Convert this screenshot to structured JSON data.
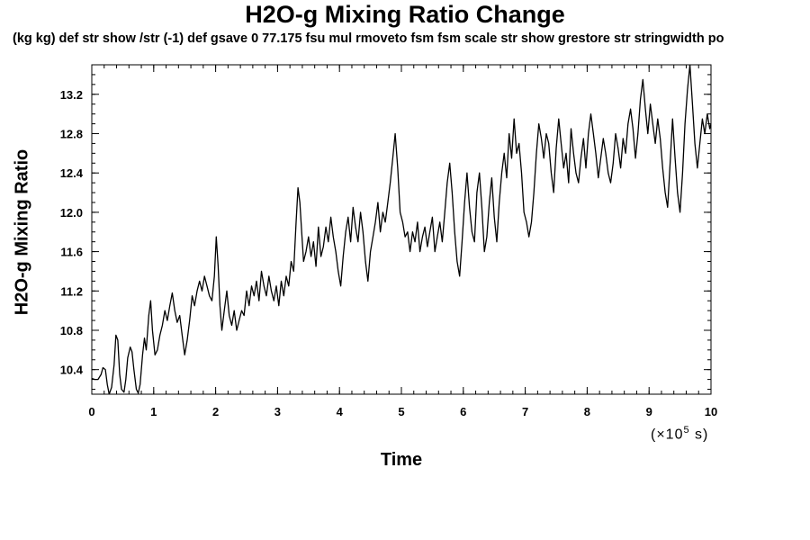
{
  "chart_data": {
    "type": "line",
    "title": "H2O-g Mixing Ratio Change",
    "subtitle": "(kg kg) def str show /str (-1) def gsave 0 77.175 fsu mul rmoveto fsm fsm scale str show grestore str stringwidth po",
    "xlabel": "Time",
    "ylabel": "H2O-g Mixing Ratio",
    "x_unit_prefix": "(×10",
    "x_unit_exp": "5",
    "x_unit_suffix": " s)",
    "xlim": [
      0,
      10
    ],
    "ylim": [
      10.15,
      13.5
    ],
    "xticks": [
      "0",
      "1",
      "2",
      "3",
      "4",
      "5",
      "6",
      "7",
      "8",
      "9",
      "10"
    ],
    "yticks": [
      "10.4",
      "10.8",
      "11.2",
      "11.6",
      "12.0",
      "12.4",
      "12.8",
      "13.2"
    ],
    "grid": false,
    "series": [
      {
        "values": [
          [
            0.0,
            10.31
          ],
          [
            0.05,
            10.3
          ],
          [
            0.1,
            10.3
          ],
          [
            0.15,
            10.35
          ],
          [
            0.18,
            10.42
          ],
          [
            0.22,
            10.4
          ],
          [
            0.25,
            10.25
          ],
          [
            0.28,
            10.15
          ],
          [
            0.32,
            10.22
          ],
          [
            0.36,
            10.45
          ],
          [
            0.39,
            10.75
          ],
          [
            0.42,
            10.7
          ],
          [
            0.45,
            10.35
          ],
          [
            0.48,
            10.2
          ],
          [
            0.52,
            10.17
          ],
          [
            0.55,
            10.3
          ],
          [
            0.58,
            10.52
          ],
          [
            0.62,
            10.63
          ],
          [
            0.65,
            10.58
          ],
          [
            0.68,
            10.4
          ],
          [
            0.72,
            10.2
          ],
          [
            0.75,
            10.16
          ],
          [
            0.78,
            10.25
          ],
          [
            0.82,
            10.55
          ],
          [
            0.85,
            10.72
          ],
          [
            0.88,
            10.6
          ],
          [
            0.92,
            10.95
          ],
          [
            0.95,
            11.1
          ],
          [
            0.98,
            10.8
          ],
          [
            1.02,
            10.55
          ],
          [
            1.06,
            10.6
          ],
          [
            1.1,
            10.75
          ],
          [
            1.14,
            10.85
          ],
          [
            1.18,
            11.0
          ],
          [
            1.22,
            10.9
          ],
          [
            1.26,
            11.05
          ],
          [
            1.3,
            11.18
          ],
          [
            1.34,
            11.0
          ],
          [
            1.38,
            10.88
          ],
          [
            1.42,
            10.95
          ],
          [
            1.46,
            10.75
          ],
          [
            1.5,
            10.55
          ],
          [
            1.54,
            10.7
          ],
          [
            1.58,
            10.9
          ],
          [
            1.62,
            11.15
          ],
          [
            1.66,
            11.05
          ],
          [
            1.7,
            11.2
          ],
          [
            1.74,
            11.3
          ],
          [
            1.78,
            11.2
          ],
          [
            1.82,
            11.35
          ],
          [
            1.86,
            11.25
          ],
          [
            1.9,
            11.15
          ],
          [
            1.94,
            11.1
          ],
          [
            1.98,
            11.35
          ],
          [
            2.01,
            11.75
          ],
          [
            2.04,
            11.45
          ],
          [
            2.07,
            11.05
          ],
          [
            2.1,
            10.8
          ],
          [
            2.14,
            11.0
          ],
          [
            2.18,
            11.2
          ],
          [
            2.22,
            10.95
          ],
          [
            2.26,
            10.85
          ],
          [
            2.3,
            11.0
          ],
          [
            2.34,
            10.8
          ],
          [
            2.38,
            10.9
          ],
          [
            2.42,
            11.0
          ],
          [
            2.46,
            10.95
          ],
          [
            2.5,
            11.2
          ],
          [
            2.54,
            11.05
          ],
          [
            2.58,
            11.25
          ],
          [
            2.62,
            11.15
          ],
          [
            2.66,
            11.3
          ],
          [
            2.7,
            11.1
          ],
          [
            2.74,
            11.4
          ],
          [
            2.78,
            11.25
          ],
          [
            2.82,
            11.15
          ],
          [
            2.86,
            11.35
          ],
          [
            2.9,
            11.2
          ],
          [
            2.94,
            11.1
          ],
          [
            2.98,
            11.25
          ],
          [
            3.02,
            11.05
          ],
          [
            3.06,
            11.3
          ],
          [
            3.1,
            11.15
          ],
          [
            3.14,
            11.35
          ],
          [
            3.18,
            11.25
          ],
          [
            3.22,
            11.5
          ],
          [
            3.26,
            11.4
          ],
          [
            3.3,
            11.9
          ],
          [
            3.33,
            12.25
          ],
          [
            3.36,
            12.1
          ],
          [
            3.39,
            11.8
          ],
          [
            3.42,
            11.5
          ],
          [
            3.46,
            11.6
          ],
          [
            3.5,
            11.75
          ],
          [
            3.54,
            11.55
          ],
          [
            3.58,
            11.7
          ],
          [
            3.62,
            11.45
          ],
          [
            3.66,
            11.85
          ],
          [
            3.7,
            11.55
          ],
          [
            3.74,
            11.65
          ],
          [
            3.78,
            11.85
          ],
          [
            3.82,
            11.7
          ],
          [
            3.86,
            11.95
          ],
          [
            3.9,
            11.75
          ],
          [
            3.94,
            11.6
          ],
          [
            3.98,
            11.4
          ],
          [
            4.02,
            11.25
          ],
          [
            4.06,
            11.55
          ],
          [
            4.1,
            11.8
          ],
          [
            4.14,
            11.95
          ],
          [
            4.18,
            11.7
          ],
          [
            4.22,
            12.05
          ],
          [
            4.26,
            11.85
          ],
          [
            4.3,
            11.7
          ],
          [
            4.34,
            12.0
          ],
          [
            4.38,
            11.8
          ],
          [
            4.42,
            11.5
          ],
          [
            4.46,
            11.3
          ],
          [
            4.5,
            11.6
          ],
          [
            4.54,
            11.75
          ],
          [
            4.58,
            11.9
          ],
          [
            4.62,
            12.1
          ],
          [
            4.66,
            11.8
          ],
          [
            4.7,
            12.0
          ],
          [
            4.74,
            11.9
          ],
          [
            4.78,
            12.1
          ],
          [
            4.82,
            12.3
          ],
          [
            4.86,
            12.55
          ],
          [
            4.9,
            12.8
          ],
          [
            4.94,
            12.45
          ],
          [
            4.98,
            12.0
          ],
          [
            5.02,
            11.9
          ],
          [
            5.06,
            11.75
          ],
          [
            5.1,
            11.8
          ],
          [
            5.14,
            11.6
          ],
          [
            5.18,
            11.8
          ],
          [
            5.22,
            11.7
          ],
          [
            5.26,
            11.9
          ],
          [
            5.3,
            11.6
          ],
          [
            5.34,
            11.75
          ],
          [
            5.38,
            11.85
          ],
          [
            5.42,
            11.65
          ],
          [
            5.46,
            11.8
          ],
          [
            5.5,
            11.95
          ],
          [
            5.54,
            11.6
          ],
          [
            5.58,
            11.75
          ],
          [
            5.62,
            11.9
          ],
          [
            5.66,
            11.7
          ],
          [
            5.7,
            12.0
          ],
          [
            5.74,
            12.3
          ],
          [
            5.78,
            12.5
          ],
          [
            5.82,
            12.2
          ],
          [
            5.86,
            11.8
          ],
          [
            5.9,
            11.5
          ],
          [
            5.94,
            11.35
          ],
          [
            5.98,
            11.7
          ],
          [
            6.02,
            12.1
          ],
          [
            6.06,
            12.4
          ],
          [
            6.1,
            12.05
          ],
          [
            6.14,
            11.8
          ],
          [
            6.18,
            11.7
          ],
          [
            6.22,
            12.2
          ],
          [
            6.26,
            12.4
          ],
          [
            6.3,
            12.05
          ],
          [
            6.34,
            11.6
          ],
          [
            6.38,
            11.75
          ],
          [
            6.42,
            12.1
          ],
          [
            6.46,
            12.35
          ],
          [
            6.5,
            11.95
          ],
          [
            6.54,
            11.7
          ],
          [
            6.58,
            12.1
          ],
          [
            6.62,
            12.4
          ],
          [
            6.66,
            12.6
          ],
          [
            6.7,
            12.35
          ],
          [
            6.74,
            12.8
          ],
          [
            6.78,
            12.55
          ],
          [
            6.82,
            12.95
          ],
          [
            6.86,
            12.6
          ],
          [
            6.9,
            12.7
          ],
          [
            6.94,
            12.4
          ],
          [
            6.98,
            12.0
          ],
          [
            7.02,
            11.9
          ],
          [
            7.06,
            11.75
          ],
          [
            7.1,
            11.9
          ],
          [
            7.14,
            12.2
          ],
          [
            7.18,
            12.6
          ],
          [
            7.22,
            12.9
          ],
          [
            7.26,
            12.75
          ],
          [
            7.3,
            12.55
          ],
          [
            7.34,
            12.8
          ],
          [
            7.38,
            12.7
          ],
          [
            7.42,
            12.4
          ],
          [
            7.46,
            12.2
          ],
          [
            7.5,
            12.65
          ],
          [
            7.54,
            12.95
          ],
          [
            7.58,
            12.7
          ],
          [
            7.62,
            12.45
          ],
          [
            7.66,
            12.6
          ],
          [
            7.7,
            12.3
          ],
          [
            7.74,
            12.85
          ],
          [
            7.78,
            12.6
          ],
          [
            7.82,
            12.4
          ],
          [
            7.86,
            12.3
          ],
          [
            7.9,
            12.55
          ],
          [
            7.94,
            12.75
          ],
          [
            7.98,
            12.45
          ],
          [
            8.02,
            12.8
          ],
          [
            8.06,
            13.0
          ],
          [
            8.1,
            12.8
          ],
          [
            8.14,
            12.6
          ],
          [
            8.18,
            12.35
          ],
          [
            8.22,
            12.55
          ],
          [
            8.26,
            12.75
          ],
          [
            8.3,
            12.6
          ],
          [
            8.34,
            12.4
          ],
          [
            8.38,
            12.3
          ],
          [
            8.42,
            12.5
          ],
          [
            8.46,
            12.8
          ],
          [
            8.5,
            12.65
          ],
          [
            8.54,
            12.45
          ],
          [
            8.58,
            12.75
          ],
          [
            8.62,
            12.6
          ],
          [
            8.66,
            12.9
          ],
          [
            8.7,
            13.05
          ],
          [
            8.74,
            12.85
          ],
          [
            8.78,
            12.55
          ],
          [
            8.82,
            12.8
          ],
          [
            8.86,
            13.15
          ],
          [
            8.9,
            13.35
          ],
          [
            8.94,
            13.05
          ],
          [
            8.98,
            12.8
          ],
          [
            9.02,
            13.1
          ],
          [
            9.06,
            12.9
          ],
          [
            9.1,
            12.7
          ],
          [
            9.14,
            12.95
          ],
          [
            9.18,
            12.75
          ],
          [
            9.22,
            12.45
          ],
          [
            9.26,
            12.2
          ],
          [
            9.3,
            12.05
          ],
          [
            9.34,
            12.5
          ],
          [
            9.38,
            12.95
          ],
          [
            9.42,
            12.55
          ],
          [
            9.46,
            12.2
          ],
          [
            9.5,
            12.0
          ],
          [
            9.54,
            12.4
          ],
          [
            9.58,
            12.9
          ],
          [
            9.62,
            13.25
          ],
          [
            9.66,
            13.5
          ],
          [
            9.7,
            13.1
          ],
          [
            9.74,
            12.7
          ],
          [
            9.78,
            12.45
          ],
          [
            9.82,
            12.7
          ],
          [
            9.86,
            12.95
          ],
          [
            9.9,
            12.8
          ],
          [
            9.94,
            13.0
          ],
          [
            9.98,
            12.85
          ],
          [
            10.0,
            12.9
          ]
        ]
      }
    ]
  }
}
